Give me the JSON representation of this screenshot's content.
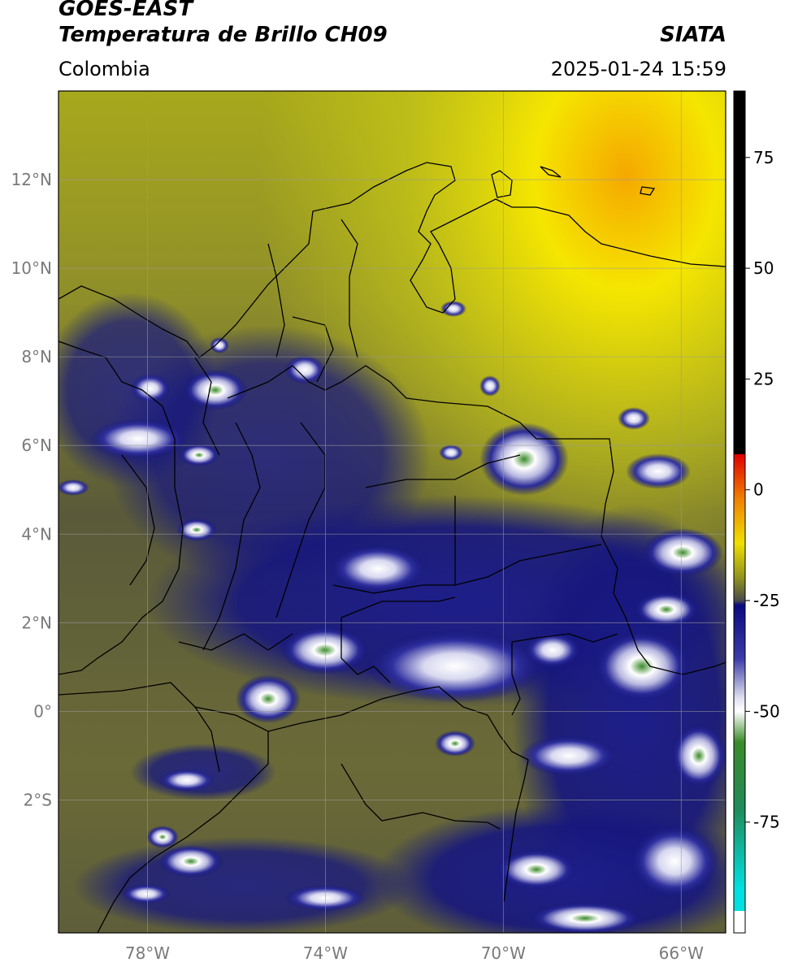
{
  "header": {
    "satellite": "GOES-EAST",
    "product": "Temperatura de Brillo CH09",
    "brand": "SIATA",
    "region": "Colombia",
    "datetime": "2025-01-24 15:59"
  },
  "map": {
    "lon_range": [
      -80,
      -65
    ],
    "lat_range": [
      -5,
      14
    ],
    "lat_ticks": [
      {
        "value": 12,
        "label": "12°N"
      },
      {
        "value": 10,
        "label": "10°N"
      },
      {
        "value": 8,
        "label": "8°N"
      },
      {
        "value": 6,
        "label": "6°N"
      },
      {
        "value": 4,
        "label": "4°N"
      },
      {
        "value": 2,
        "label": "2°N"
      },
      {
        "value": 0,
        "label": "0°"
      },
      {
        "value": -2,
        "label": "2°S"
      }
    ],
    "lon_ticks": [
      {
        "value": -78,
        "label": "78°W"
      },
      {
        "value": -74,
        "label": "74°W"
      },
      {
        "value": -70,
        "label": "70°W"
      },
      {
        "value": -66,
        "label": "66°W"
      }
    ]
  },
  "colorbar": {
    "range": [
      -100,
      90
    ],
    "stops": [
      {
        "value": 90,
        "color": "#000000"
      },
      {
        "value": 8,
        "color": "#000000"
      },
      {
        "value": 8,
        "color": "#e00000"
      },
      {
        "value": -2,
        "color": "#f08000"
      },
      {
        "value": -12,
        "color": "#f0e000"
      },
      {
        "value": -20,
        "color": "#909020"
      },
      {
        "value": -25,
        "color": "#4a4a4a"
      },
      {
        "value": -26,
        "color": "#0a0a80"
      },
      {
        "value": -38,
        "color": "#3a3aa8"
      },
      {
        "value": -47,
        "color": "#e0e0f0"
      },
      {
        "value": -50,
        "color": "#ffffff"
      },
      {
        "value": -57,
        "color": "#3a8a2a"
      },
      {
        "value": -72,
        "color": "#208a5a"
      },
      {
        "value": -90,
        "color": "#00e0e0"
      },
      {
        "value": -95,
        "color": "#00e0e0"
      },
      {
        "value": -95,
        "color": "#ffffff"
      },
      {
        "value": -100,
        "color": "#ffffff"
      }
    ],
    "ticks": [
      {
        "value": 75,
        "label": "75"
      },
      {
        "value": 50,
        "label": "50"
      },
      {
        "value": 25,
        "label": "25"
      },
      {
        "value": 0,
        "label": "0"
      },
      {
        "value": -25,
        "label": "-25"
      },
      {
        "value": -50,
        "label": "-50"
      },
      {
        "value": -75,
        "label": "-75"
      }
    ]
  }
}
